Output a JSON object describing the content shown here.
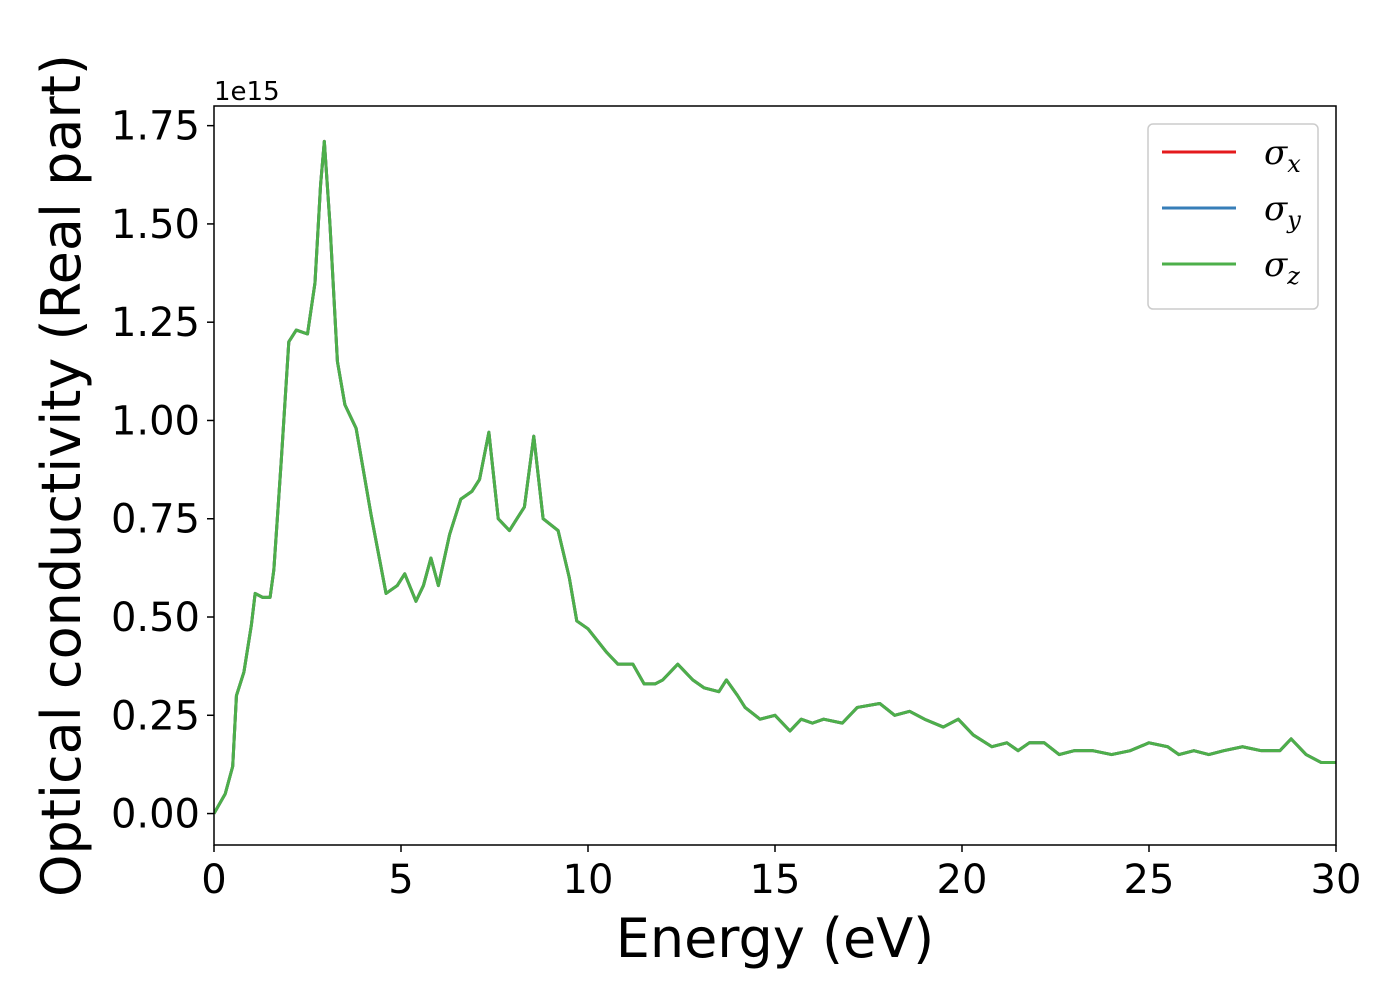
{
  "chart_data": {
    "type": "line",
    "xlabel": "Energy (eV)",
    "ylabel": "Optical conductivity (Real part)",
    "offset_label": "1e15",
    "x": [
      0,
      0.3,
      0.5,
      0.6,
      0.8,
      1.0,
      1.1,
      1.3,
      1.5,
      1.6,
      1.8,
      2.0,
      2.2,
      2.5,
      2.7,
      2.85,
      2.95,
      3.1,
      3.3,
      3.5,
      3.8,
      4.2,
      4.6,
      4.9,
      5.1,
      5.4,
      5.6,
      5.8,
      6.0,
      6.3,
      6.6,
      6.9,
      7.1,
      7.35,
      7.6,
      7.9,
      8.1,
      8.3,
      8.55,
      8.8,
      9.2,
      9.5,
      9.7,
      10.0,
      10.5,
      10.8,
      11.2,
      11.5,
      11.8,
      12.0,
      12.4,
      12.8,
      13.1,
      13.5,
      13.7,
      14.0,
      14.2,
      14.6,
      15.0,
      15.4,
      15.7,
      16.0,
      16.3,
      16.8,
      17.2,
      17.8,
      18.2,
      18.6,
      19.0,
      19.5,
      19.9,
      20.3,
      20.8,
      21.2,
      21.5,
      21.8,
      22.2,
      22.6,
      23.0,
      23.5,
      24.0,
      24.5,
      25.0,
      25.5,
      25.8,
      26.2,
      26.6,
      27.0,
      27.5,
      28.0,
      28.5,
      28.8,
      29.2,
      29.6,
      30.0
    ],
    "series": [
      {
        "name": "σx",
        "color": "#e41a1c",
        "values": [
          0.0,
          0.05,
          0.12,
          0.3,
          0.36,
          0.48,
          0.56,
          0.55,
          0.55,
          0.62,
          0.9,
          1.2,
          1.23,
          1.22,
          1.35,
          1.6,
          1.71,
          1.5,
          1.15,
          1.04,
          0.98,
          0.76,
          0.56,
          0.58,
          0.61,
          0.54,
          0.58,
          0.65,
          0.58,
          0.71,
          0.8,
          0.82,
          0.85,
          0.97,
          0.75,
          0.72,
          0.75,
          0.78,
          0.96,
          0.75,
          0.72,
          0.6,
          0.49,
          0.47,
          0.41,
          0.38,
          0.38,
          0.33,
          0.33,
          0.34,
          0.38,
          0.34,
          0.32,
          0.31,
          0.34,
          0.3,
          0.27,
          0.24,
          0.25,
          0.21,
          0.24,
          0.23,
          0.24,
          0.23,
          0.27,
          0.28,
          0.25,
          0.26,
          0.24,
          0.22,
          0.24,
          0.2,
          0.17,
          0.18,
          0.16,
          0.18,
          0.18,
          0.15,
          0.16,
          0.16,
          0.15,
          0.16,
          0.18,
          0.17,
          0.15,
          0.16,
          0.15,
          0.16,
          0.17,
          0.16,
          0.16,
          0.19,
          0.15,
          0.13,
          0.13
        ]
      },
      {
        "name": "σy",
        "color": "#377eb8",
        "values": [
          0.0,
          0.05,
          0.12,
          0.3,
          0.36,
          0.48,
          0.56,
          0.55,
          0.55,
          0.62,
          0.9,
          1.2,
          1.23,
          1.22,
          1.35,
          1.6,
          1.71,
          1.5,
          1.15,
          1.04,
          0.98,
          0.76,
          0.56,
          0.58,
          0.61,
          0.54,
          0.58,
          0.65,
          0.58,
          0.71,
          0.8,
          0.82,
          0.85,
          0.97,
          0.75,
          0.72,
          0.75,
          0.78,
          0.96,
          0.75,
          0.72,
          0.6,
          0.49,
          0.47,
          0.41,
          0.38,
          0.38,
          0.33,
          0.33,
          0.34,
          0.38,
          0.34,
          0.32,
          0.31,
          0.34,
          0.3,
          0.27,
          0.24,
          0.25,
          0.21,
          0.24,
          0.23,
          0.24,
          0.23,
          0.27,
          0.28,
          0.25,
          0.26,
          0.24,
          0.22,
          0.24,
          0.2,
          0.17,
          0.18,
          0.16,
          0.18,
          0.18,
          0.15,
          0.16,
          0.16,
          0.15,
          0.16,
          0.18,
          0.17,
          0.15,
          0.16,
          0.15,
          0.16,
          0.17,
          0.16,
          0.16,
          0.19,
          0.15,
          0.13,
          0.13
        ]
      },
      {
        "name": "σz",
        "color": "#4daf4a",
        "values": [
          0.0,
          0.05,
          0.12,
          0.3,
          0.36,
          0.48,
          0.56,
          0.55,
          0.55,
          0.62,
          0.9,
          1.2,
          1.23,
          1.22,
          1.35,
          1.6,
          1.71,
          1.5,
          1.15,
          1.04,
          0.98,
          0.76,
          0.56,
          0.58,
          0.61,
          0.54,
          0.58,
          0.65,
          0.58,
          0.71,
          0.8,
          0.82,
          0.85,
          0.97,
          0.75,
          0.72,
          0.75,
          0.78,
          0.96,
          0.75,
          0.72,
          0.6,
          0.49,
          0.47,
          0.41,
          0.38,
          0.38,
          0.33,
          0.33,
          0.34,
          0.38,
          0.34,
          0.32,
          0.31,
          0.34,
          0.3,
          0.27,
          0.24,
          0.25,
          0.21,
          0.24,
          0.23,
          0.24,
          0.23,
          0.27,
          0.28,
          0.25,
          0.26,
          0.24,
          0.22,
          0.24,
          0.2,
          0.17,
          0.18,
          0.16,
          0.18,
          0.18,
          0.15,
          0.16,
          0.16,
          0.15,
          0.16,
          0.18,
          0.17,
          0.15,
          0.16,
          0.15,
          0.16,
          0.17,
          0.16,
          0.16,
          0.19,
          0.15,
          0.13,
          0.13
        ]
      }
    ],
    "xlim": [
      0,
      30
    ],
    "xticks": [
      0,
      5,
      10,
      15,
      20,
      25,
      30
    ],
    "ylim": [
      -0.08,
      1.8
    ],
    "yticks": [
      {
        "value": 0,
        "label": "0.00"
      },
      0.25,
      {
        "value": 0.5,
        "label": "0.50"
      },
      0.75,
      {
        "value": 1,
        "label": "1.00"
      },
      1.25,
      {
        "value": 1.5,
        "label": "1.50"
      },
      1.75
    ],
    "legend": "upper right",
    "grid": false
  }
}
